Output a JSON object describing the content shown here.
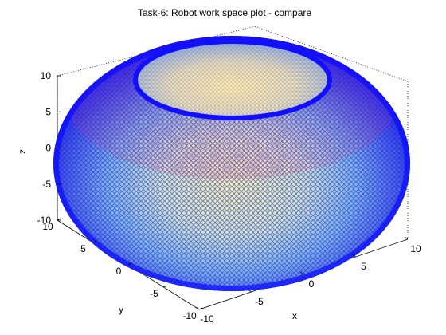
{
  "chart_data": {
    "type": "scatter",
    "kind": "3d-scatter-torus",
    "title": "Task-6: Robot work space plot - compare",
    "xlabel": "x",
    "ylabel": "y",
    "zlabel": "z",
    "xlim": [
      -10,
      10
    ],
    "ylim": [
      -10,
      10
    ],
    "zlim": [
      -10,
      10
    ],
    "x_ticks": [
      "-10",
      "-5",
      "0",
      "5",
      "10"
    ],
    "y_ticks": [
      "-10",
      "-5",
      "0",
      "5",
      "10"
    ],
    "z_ticks": [
      "-10",
      "-5",
      "0",
      "5",
      "10"
    ],
    "grid": false,
    "marker": "o",
    "colormap": "yellow-to-blue",
    "colors": {
      "outer": "#1212ff",
      "mid": "#5a58d8",
      "inner_highlight": "#f2f2a0",
      "ring_edge": "#d03a8c"
    },
    "surface": {
      "shape": "torus",
      "major_radius": 5.5,
      "minor_radius": 5.0,
      "center": [
        0,
        0,
        0
      ]
    }
  }
}
